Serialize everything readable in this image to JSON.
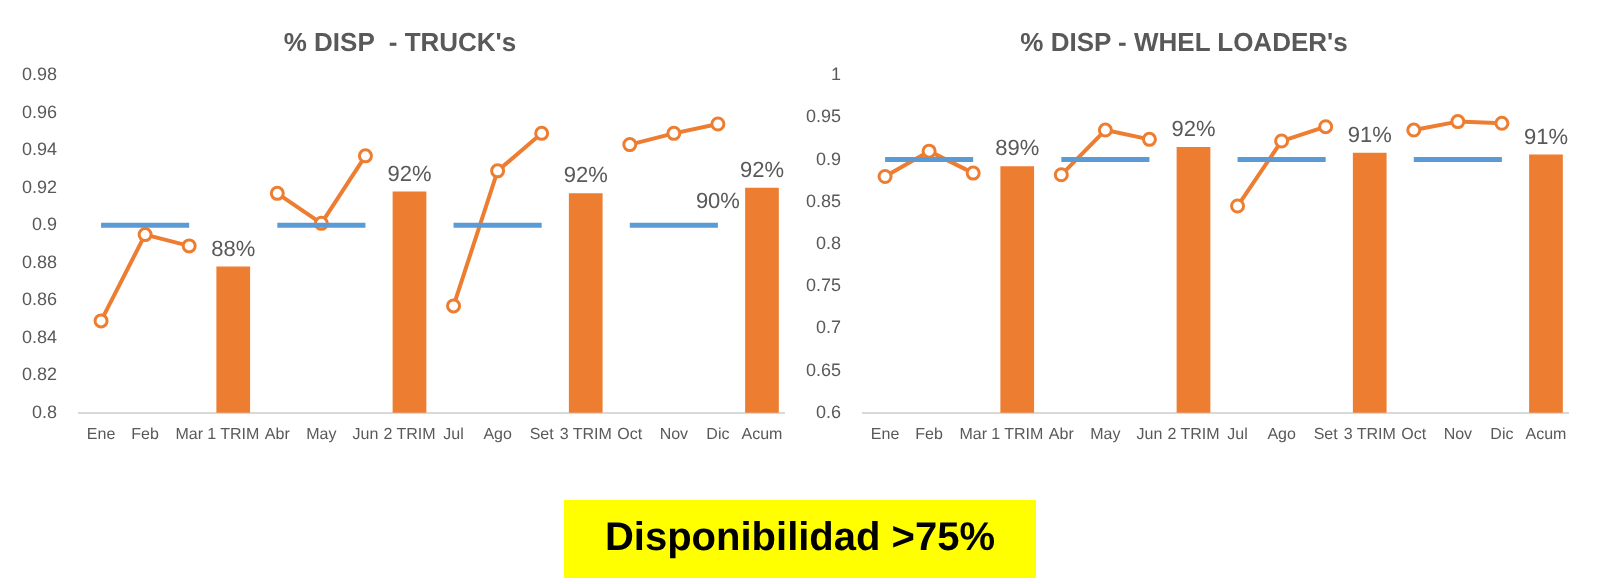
{
  "chart_data": [
    {
      "type": "bar",
      "title": "% DISP  - TRUCK's",
      "categories": [
        "Ene",
        "Feb",
        "Mar",
        "1 TRIM",
        "Abr",
        "May",
        "Jun",
        "2 TRIM",
        "Jul",
        "Ago",
        "Set",
        "3 TRIM",
        "Oct",
        "Nov",
        "Dic",
        "Acum"
      ],
      "series": [
        {
          "type": "bar",
          "color": "#ed7d31",
          "values": [
            null,
            null,
            null,
            0.878,
            null,
            null,
            null,
            0.918,
            null,
            null,
            null,
            0.917,
            null,
            null,
            null,
            0.92
          ],
          "value_labels": [
            null,
            null,
            null,
            "88%",
            null,
            null,
            null,
            "92%",
            null,
            null,
            null,
            "92%",
            null,
            null,
            null,
            "92%"
          ]
        },
        {
          "type": "line",
          "color": "#5b9bd5",
          "marker": "none",
          "values": [
            0.9,
            0.9,
            0.9,
            null,
            0.9,
            0.9,
            0.9,
            null,
            0.9,
            0.9,
            0.9,
            null,
            0.9,
            0.9,
            0.9,
            null
          ]
        },
        {
          "type": "line",
          "color": "#ed7d31",
          "marker": "circle",
          "values": [
            0.849,
            0.895,
            0.889,
            null,
            0.917,
            0.901,
            0.937,
            null,
            0.857,
            0.929,
            0.949,
            null,
            0.943,
            0.949,
            0.954,
            null
          ]
        }
      ],
      "ylim": [
        0.8,
        0.98
      ],
      "yticks": [
        0.8,
        0.82,
        0.84,
        0.86,
        0.88,
        0.9,
        0.92,
        0.94,
        0.96,
        0.98
      ],
      "grid": false,
      "legend": false,
      "annotations": [
        {
          "text": "90%",
          "x": "Dic",
          "y": 0.9
        }
      ]
    },
    {
      "type": "bar",
      "title": "% DISP - WHEL LOADER's",
      "categories": [
        "Ene",
        "Feb",
        "Mar",
        "1 TRIM",
        "Abr",
        "May",
        "Jun",
        "2 TRIM",
        "Jul",
        "Ago",
        "Set",
        "3 TRIM",
        "Oct",
        "Nov",
        "Dic",
        "Acum"
      ],
      "series": [
        {
          "type": "bar",
          "color": "#ed7d31",
          "values": [
            null,
            null,
            null,
            0.892,
            null,
            null,
            null,
            0.915,
            null,
            null,
            null,
            0.908,
            null,
            null,
            null,
            0.906
          ],
          "value_labels": [
            null,
            null,
            null,
            "89%",
            null,
            null,
            null,
            "92%",
            null,
            null,
            null,
            "91%",
            null,
            null,
            null,
            "91%"
          ]
        },
        {
          "type": "line",
          "color": "#5b9bd5",
          "marker": "none",
          "values": [
            0.9,
            0.9,
            0.9,
            null,
            0.9,
            0.9,
            0.9,
            null,
            0.9,
            0.9,
            0.9,
            null,
            0.9,
            0.9,
            0.9,
            null
          ]
        },
        {
          "type": "line",
          "color": "#ed7d31",
          "marker": "circle",
          "values": [
            0.88,
            0.91,
            0.884,
            null,
            0.882,
            0.935,
            0.924,
            null,
            0.845,
            0.922,
            0.939,
            null,
            0.935,
            0.945,
            0.943,
            null
          ]
        }
      ],
      "ylim": [
        0.6,
        1
      ],
      "yticks": [
        0.6,
        0.65,
        0.7,
        0.75,
        0.8,
        0.85,
        0.9,
        0.95,
        1
      ],
      "grid": false,
      "legend": false
    },
    {
      "type": "other",
      "annotations": [
        "Disponibilidad >75%"
      ]
    }
  ]
}
